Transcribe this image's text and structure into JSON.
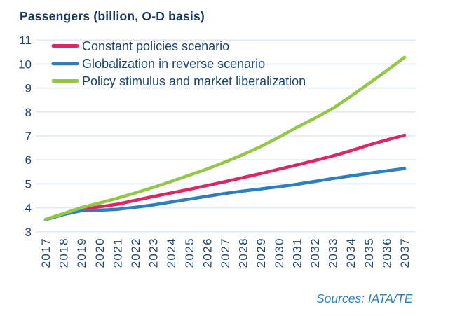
{
  "chart": {
    "title": "Passengers (billion, O-D basis)",
    "sources": "Sources: IATA/TE"
  },
  "colors": {
    "title_text": "#17375E",
    "axis_text": "#1C4670",
    "legend_text": "#1C4670",
    "sources_text": "#2980B9",
    "gridline": "#E1EAF3",
    "background": "#FFFFFF"
  },
  "chart_data": {
    "type": "line",
    "title": "Passengers (billion, O-D basis)",
    "xlabel": "",
    "ylabel": "",
    "x": [
      2017,
      2018,
      2019,
      2020,
      2021,
      2022,
      2023,
      2024,
      2025,
      2026,
      2027,
      2028,
      2029,
      2030,
      2031,
      2032,
      2033,
      2034,
      2035,
      2036,
      2037
    ],
    "series": [
      {
        "name": "Constant policies scenario",
        "color": "#E02566",
        "values": [
          3.51,
          3.74,
          3.95,
          4.04,
          4.15,
          4.31,
          4.47,
          4.62,
          4.77,
          4.93,
          5.09,
          5.26,
          5.43,
          5.61,
          5.79,
          5.97,
          6.16,
          6.38,
          6.62,
          6.83,
          7.03
        ]
      },
      {
        "name": "Globalization in reverse scenario",
        "color": "#2D80BF",
        "values": [
          3.51,
          3.72,
          3.88,
          3.9,
          3.94,
          4.02,
          4.12,
          4.24,
          4.36,
          4.48,
          4.6,
          4.7,
          4.79,
          4.88,
          4.98,
          5.1,
          5.22,
          5.33,
          5.44,
          5.54,
          5.64
        ]
      },
      {
        "name": "Policy stimulus and market liberalization",
        "color": "#92C845",
        "values": [
          3.52,
          3.76,
          4.01,
          4.2,
          4.4,
          4.62,
          4.85,
          5.1,
          5.36,
          5.62,
          5.91,
          6.22,
          6.56,
          6.95,
          7.36,
          7.74,
          8.15,
          8.65,
          9.18,
          9.72,
          10.28
        ]
      }
    ],
    "ylim": [
      3,
      11
    ],
    "yticks": [
      3,
      4,
      5,
      6,
      7,
      8,
      9,
      10,
      11
    ],
    "grid": "horizontal",
    "legend_position": "top-left-inside"
  }
}
